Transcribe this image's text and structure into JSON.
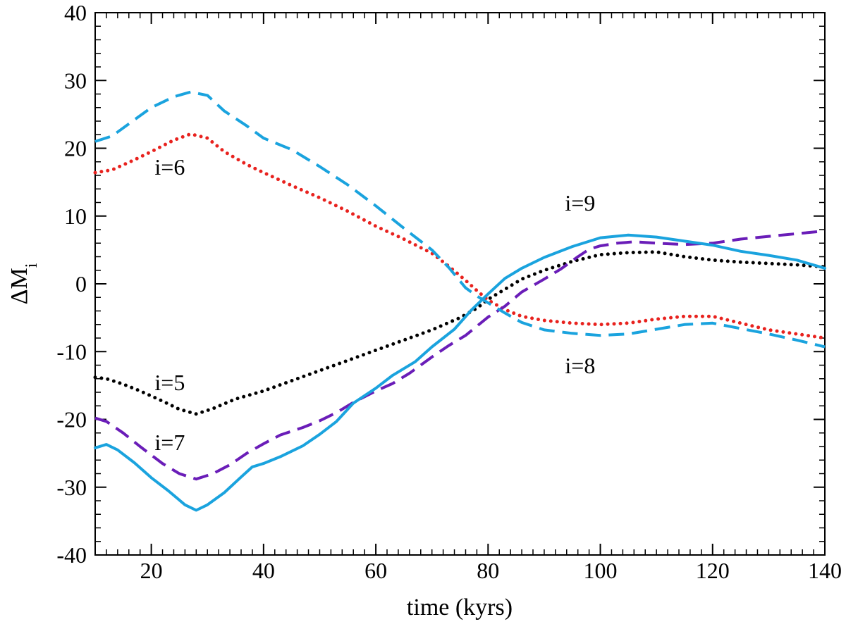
{
  "chart_data": {
    "type": "line",
    "title": "",
    "xlabel": "time (kyrs)",
    "ylabel_main": "ΔM",
    "ylabel_sub": "i",
    "xlim": [
      10,
      140
    ],
    "ylim": [
      -40,
      40
    ],
    "x_ticks": [
      20,
      40,
      60,
      80,
      100,
      120,
      140
    ],
    "x_tick_labels": [
      "20",
      "40",
      "60",
      "80",
      "100",
      "120",
      "140"
    ],
    "y_ticks": [
      -40,
      -30,
      -20,
      -10,
      0,
      10,
      20,
      30,
      40
    ],
    "y_tick_labels": [
      "-40",
      "-30",
      "-20",
      "-10",
      "0",
      "10",
      "20",
      "30",
      "40"
    ],
    "grid": false,
    "series": [
      {
        "name": "i=5",
        "color": "#000000",
        "style": "dotted",
        "points": [
          [
            10,
            -13.8
          ],
          [
            12,
            -14.0
          ],
          [
            15,
            -14.8
          ],
          [
            18,
            -15.8
          ],
          [
            22,
            -17.3
          ],
          [
            25,
            -18.5
          ],
          [
            28,
            -19.2
          ],
          [
            31,
            -18.4
          ],
          [
            35,
            -17.0
          ],
          [
            40,
            -15.8
          ],
          [
            45,
            -14.3
          ],
          [
            50,
            -12.8
          ],
          [
            55,
            -11.3
          ],
          [
            60,
            -9.8
          ],
          [
            65,
            -8.3
          ],
          [
            70,
            -6.8
          ],
          [
            75,
            -5.0
          ],
          [
            78,
            -3.6
          ],
          [
            80,
            -2.3
          ],
          [
            83,
            -0.8
          ],
          [
            86,
            0.7
          ],
          [
            90,
            2.0
          ],
          [
            95,
            3.3
          ],
          [
            100,
            4.3
          ],
          [
            105,
            4.6
          ],
          [
            110,
            4.7
          ],
          [
            115,
            4.0
          ],
          [
            120,
            3.5
          ],
          [
            125,
            3.2
          ],
          [
            130,
            3.0
          ],
          [
            135,
            2.8
          ],
          [
            140,
            2.5
          ]
        ]
      },
      {
        "name": "i=6",
        "color": "#e8221e",
        "style": "dotted",
        "points": [
          [
            10,
            16.4
          ],
          [
            13,
            16.8
          ],
          [
            17,
            18.3
          ],
          [
            20,
            19.5
          ],
          [
            24,
            21.2
          ],
          [
            27,
            22.1
          ],
          [
            30,
            21.5
          ],
          [
            33,
            19.5
          ],
          [
            37,
            17.6
          ],
          [
            40,
            16.4
          ],
          [
            45,
            14.5
          ],
          [
            50,
            12.7
          ],
          [
            55,
            10.7
          ],
          [
            60,
            8.5
          ],
          [
            65,
            6.6
          ],
          [
            70,
            4.5
          ],
          [
            73,
            2.6
          ],
          [
            76,
            0.5
          ],
          [
            78,
            -1.0
          ],
          [
            80,
            -2.4
          ],
          [
            83,
            -3.8
          ],
          [
            86,
            -4.8
          ],
          [
            90,
            -5.4
          ],
          [
            95,
            -5.8
          ],
          [
            100,
            -6.0
          ],
          [
            105,
            -5.8
          ],
          [
            110,
            -5.2
          ],
          [
            115,
            -4.8
          ],
          [
            120,
            -4.8
          ],
          [
            125,
            -5.8
          ],
          [
            130,
            -6.8
          ],
          [
            135,
            -7.4
          ],
          [
            140,
            -8.0
          ]
        ]
      },
      {
        "name": "i=7",
        "color": "#6a1db8",
        "style": "dashed",
        "points": [
          [
            10,
            -19.8
          ],
          [
            12,
            -20.3
          ],
          [
            15,
            -22.0
          ],
          [
            18,
            -24.0
          ],
          [
            22,
            -26.5
          ],
          [
            25,
            -28.0
          ],
          [
            28,
            -28.8
          ],
          [
            31,
            -28.0
          ],
          [
            34,
            -26.7
          ],
          [
            37,
            -25.0
          ],
          [
            40,
            -23.6
          ],
          [
            43,
            -22.3
          ],
          [
            47,
            -21.2
          ],
          [
            50,
            -20.2
          ],
          [
            53,
            -19.0
          ],
          [
            56,
            -17.5
          ],
          [
            60,
            -15.8
          ],
          [
            63,
            -14.7
          ],
          [
            66,
            -13.2
          ],
          [
            70,
            -10.8
          ],
          [
            73,
            -9.1
          ],
          [
            76,
            -7.6
          ],
          [
            80,
            -4.9
          ],
          [
            83,
            -3.3
          ],
          [
            86,
            -1.2
          ],
          [
            90,
            0.7
          ],
          [
            93,
            2.2
          ],
          [
            96,
            4.0
          ],
          [
            98,
            5.1
          ],
          [
            100,
            5.6
          ],
          [
            103,
            6.0
          ],
          [
            106,
            6.2
          ],
          [
            110,
            6.0
          ],
          [
            115,
            5.8
          ],
          [
            120,
            6.0
          ],
          [
            125,
            6.6
          ],
          [
            130,
            7.0
          ],
          [
            135,
            7.4
          ],
          [
            140,
            7.8
          ]
        ]
      },
      {
        "name": "i=8",
        "color": "#1aa3de",
        "style": "dashed",
        "points": [
          [
            10,
            21.0
          ],
          [
            13,
            21.8
          ],
          [
            17,
            24.2
          ],
          [
            20,
            26.0
          ],
          [
            24,
            27.6
          ],
          [
            27,
            28.3
          ],
          [
            30,
            27.8
          ],
          [
            33,
            25.5
          ],
          [
            37,
            23.3
          ],
          [
            40,
            21.5
          ],
          [
            45,
            19.8
          ],
          [
            50,
            17.3
          ],
          [
            55,
            14.6
          ],
          [
            60,
            11.5
          ],
          [
            65,
            8.2
          ],
          [
            70,
            5.0
          ],
          [
            73,
            2.4
          ],
          [
            76,
            -0.6
          ],
          [
            78,
            -1.8
          ],
          [
            80,
            -2.8
          ],
          [
            83,
            -4.3
          ],
          [
            86,
            -5.7
          ],
          [
            90,
            -6.8
          ],
          [
            95,
            -7.3
          ],
          [
            100,
            -7.6
          ],
          [
            105,
            -7.4
          ],
          [
            110,
            -6.7
          ],
          [
            115,
            -6.0
          ],
          [
            120,
            -5.8
          ],
          [
            125,
            -6.6
          ],
          [
            130,
            -7.4
          ],
          [
            135,
            -8.3
          ],
          [
            140,
            -9.3
          ]
        ]
      },
      {
        "name": "i=9",
        "color": "#1aa3de",
        "style": "solid",
        "points": [
          [
            10,
            -24.2
          ],
          [
            12,
            -23.7
          ],
          [
            14,
            -24.5
          ],
          [
            17,
            -26.4
          ],
          [
            20,
            -28.6
          ],
          [
            23,
            -30.5
          ],
          [
            26,
            -32.6
          ],
          [
            28,
            -33.4
          ],
          [
            30,
            -32.6
          ],
          [
            33,
            -30.8
          ],
          [
            36,
            -28.5
          ],
          [
            38,
            -27.0
          ],
          [
            40,
            -26.5
          ],
          [
            43,
            -25.5
          ],
          [
            47,
            -23.9
          ],
          [
            50,
            -22.2
          ],
          [
            53,
            -20.3
          ],
          [
            56,
            -17.6
          ],
          [
            60,
            -15.4
          ],
          [
            63,
            -13.5
          ],
          [
            67,
            -11.5
          ],
          [
            70,
            -9.3
          ],
          [
            74,
            -6.7
          ],
          [
            77,
            -3.9
          ],
          [
            80,
            -1.5
          ],
          [
            83,
            0.8
          ],
          [
            86,
            2.3
          ],
          [
            90,
            3.9
          ],
          [
            95,
            5.5
          ],
          [
            100,
            6.8
          ],
          [
            105,
            7.2
          ],
          [
            110,
            6.9
          ],
          [
            115,
            6.3
          ],
          [
            120,
            5.7
          ],
          [
            125,
            4.8
          ],
          [
            130,
            4.2
          ],
          [
            135,
            3.5
          ],
          [
            140,
            2.3
          ]
        ]
      }
    ],
    "annotations": [
      {
        "text": "i=6",
        "x": 20.6,
        "y": 16.1
      },
      {
        "text": "i=9",
        "x": 93.7,
        "y": 10.8
      },
      {
        "text": "i=5",
        "x": 20.6,
        "y": -15.7
      },
      {
        "text": "i=8",
        "x": 93.7,
        "y": -13.2
      },
      {
        "text": "i=7",
        "x": 20.6,
        "y": -24.5
      }
    ]
  }
}
